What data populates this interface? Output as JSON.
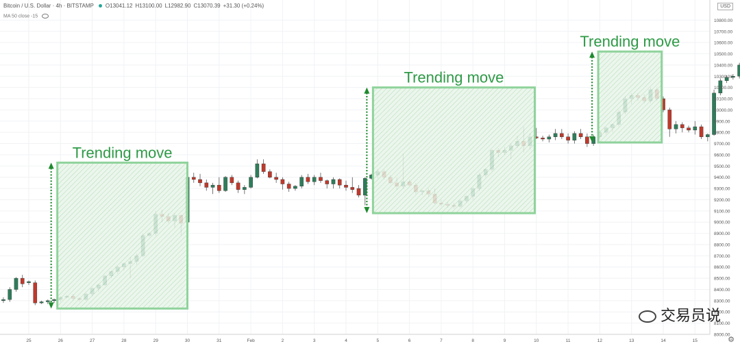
{
  "header": {
    "symbol": "Bitcoin / U.S. Dollar · 4h · BITSTAMP",
    "open": "O13041.12",
    "high": "H13100.00",
    "low": "L12982.90",
    "close": "C13070.39",
    "change": "+31.30 (+0.24%)",
    "ma_label": "MA 50 close -15",
    "currency": "USD"
  },
  "watermark": "交易员说",
  "colors": {
    "up": "#2e7d5b",
    "down": "#c0392b",
    "zone_stroke": "#8fd39b",
    "arrow": "#1e8a2e",
    "label": "#2e9a46"
  },
  "chart_data": {
    "type": "candlestick",
    "ylim": [
      8000,
      10900
    ],
    "y_ticks": [
      "8000.00",
      "8100.00",
      "8200.00",
      "8300.00",
      "8400.00",
      "8500.00",
      "8600.00",
      "8700.00",
      "8800.00",
      "8900.00",
      "9000.00",
      "9100.00",
      "9200.00",
      "9300.00",
      "9400.00",
      "9500.00",
      "9600.00",
      "9700.00",
      "9800.00",
      "9900.00",
      "10000.00",
      "10100.00",
      "10200.00",
      "10300.00",
      "10400.00",
      "10500.00",
      "10600.00",
      "10700.00",
      "10800.00"
    ],
    "x_ticks": [
      "25",
      "26",
      "27",
      "28",
      "29",
      "30",
      "31",
      "Feb",
      "2",
      "3",
      "4",
      "5",
      "6",
      "7",
      "8",
      "9",
      "10",
      "11",
      "12",
      "13",
      "14",
      "15"
    ],
    "candles_x": 0.2,
    "candles": [
      [
        8300,
        8330,
        8280,
        8310
      ],
      [
        8310,
        8420,
        8290,
        8400
      ],
      [
        8400,
        8510,
        8380,
        8500
      ],
      [
        8500,
        8530,
        8420,
        8450
      ],
      [
        8460,
        8480,
        8440,
        8470
      ],
      [
        8460,
        8480,
        8260,
        8280
      ],
      [
        8280,
        8300,
        8270,
        8290
      ],
      [
        8290,
        8310,
        8270,
        8300
      ],
      [
        8300,
        8320,
        8280,
        8310
      ],
      [
        8310,
        8340,
        8290,
        8330
      ],
      [
        8330,
        8350,
        8320,
        8340
      ],
      [
        8340,
        8360,
        8300,
        8320
      ],
      [
        8320,
        8330,
        8290,
        8310
      ],
      [
        8310,
        8370,
        8300,
        8360
      ],
      [
        8360,
        8420,
        8340,
        8410
      ],
      [
        8410,
        8450,
        8380,
        8440
      ],
      [
        8440,
        8530,
        8430,
        8520
      ],
      [
        8520,
        8570,
        8500,
        8560
      ],
      [
        8560,
        8610,
        8540,
        8600
      ],
      [
        8600,
        8640,
        8570,
        8630
      ],
      [
        8630,
        8690,
        8500,
        8650
      ],
      [
        8650,
        8720,
        8620,
        8700
      ],
      [
        8700,
        8900,
        8690,
        8880
      ],
      [
        8880,
        8910,
        8870,
        8900
      ],
      [
        8900,
        9100,
        8880,
        9070
      ],
      [
        9070,
        9110,
        9000,
        9050
      ],
      [
        9050,
        9080,
        8990,
        9010
      ],
      [
        9010,
        9080,
        8950,
        9060
      ],
      [
        9060,
        9070,
        8880,
        8990
      ],
      [
        9000,
        9420,
        8980,
        9400
      ],
      [
        9400,
        9440,
        9350,
        9380
      ],
      [
        9380,
        9430,
        9320,
        9350
      ],
      [
        9350,
        9380,
        9280,
        9310
      ],
      [
        9310,
        9350,
        9250,
        9330
      ],
      [
        9330,
        9400,
        9260,
        9280
      ],
      [
        9280,
        9410,
        9270,
        9400
      ],
      [
        9400,
        9420,
        9330,
        9350
      ],
      [
        9350,
        9370,
        9260,
        9290
      ],
      [
        9290,
        9330,
        9250,
        9310
      ],
      [
        9310,
        9420,
        9300,
        9400
      ],
      [
        9400,
        9560,
        9390,
        9520
      ],
      [
        9520,
        9560,
        9430,
        9450
      ],
      [
        9450,
        9470,
        9390,
        9400
      ],
      [
        9400,
        9440,
        9350,
        9380
      ],
      [
        9380,
        9400,
        9290,
        9340
      ],
      [
        9340,
        9360,
        9270,
        9300
      ],
      [
        9300,
        9330,
        9280,
        9320
      ],
      [
        9320,
        9420,
        9300,
        9400
      ],
      [
        9400,
        9430,
        9340,
        9360
      ],
      [
        9360,
        9420,
        9330,
        9400
      ],
      [
        9400,
        9440,
        9350,
        9370
      ],
      [
        9370,
        9380,
        9300,
        9340
      ],
      [
        9340,
        9400,
        9300,
        9380
      ],
      [
        9380,
        9390,
        9300,
        9330
      ],
      [
        9330,
        9370,
        9280,
        9310
      ],
      [
        9310,
        9400,
        9260,
        9290
      ],
      [
        9300,
        9330,
        9220,
        9240
      ],
      [
        9240,
        9400,
        9150,
        9390
      ],
      [
        9390,
        9430,
        9380,
        9420
      ],
      [
        9420,
        9470,
        9390,
        9450
      ],
      [
        9450,
        9470,
        9380,
        9400
      ],
      [
        9400,
        9420,
        9340,
        9350
      ],
      [
        9350,
        9400,
        9290,
        9320
      ],
      [
        9320,
        9610,
        9300,
        9360
      ],
      [
        9360,
        9380,
        9320,
        9330
      ],
      [
        9330,
        9350,
        9250,
        9270
      ],
      [
        9270,
        9290,
        9240,
        9280
      ],
      [
        9280,
        9300,
        9230,
        9250
      ],
      [
        9250,
        9300,
        9160,
        9170
      ],
      [
        9170,
        9200,
        9140,
        9160
      ],
      [
        9160,
        9180,
        9130,
        9150
      ],
      [
        9150,
        9170,
        9120,
        9140
      ],
      [
        9140,
        9200,
        9130,
        9190
      ],
      [
        9190,
        9240,
        9170,
        9230
      ],
      [
        9230,
        9310,
        9200,
        9300
      ],
      [
        9300,
        9440,
        9280,
        9420
      ],
      [
        9420,
        9480,
        9400,
        9470
      ],
      [
        9470,
        9650,
        9450,
        9640
      ],
      [
        9640,
        9660,
        9580,
        9620
      ],
      [
        9620,
        9670,
        9600,
        9640
      ],
      [
        9640,
        9700,
        9560,
        9680
      ],
      [
        9680,
        9770,
        9660,
        9720
      ],
      [
        9720,
        9850,
        9620,
        9680
      ],
      [
        9680,
        9790,
        9650,
        9760
      ],
      [
        9760,
        9840,
        9740,
        9750
      ],
      [
        9750,
        9770,
        9720,
        9740
      ],
      [
        9740,
        9780,
        9710,
        9760
      ],
      [
        9760,
        9830,
        9730,
        9790
      ],
      [
        9790,
        9830,
        9740,
        9760
      ],
      [
        9760,
        9790,
        9700,
        9730
      ],
      [
        9730,
        9810,
        9700,
        9790
      ],
      [
        9790,
        9830,
        9740,
        9760
      ],
      [
        9760,
        9790,
        9670,
        9700
      ],
      [
        9700,
        9780,
        9680,
        9760
      ],
      [
        9760,
        9820,
        9740,
        9800
      ],
      [
        9800,
        9850,
        9780,
        9840
      ],
      [
        9840,
        9880,
        9800,
        9870
      ],
      [
        9870,
        10000,
        9850,
        9980
      ],
      [
        9980,
        10120,
        9960,
        10100
      ],
      [
        10100,
        10150,
        10050,
        10130
      ],
      [
        10130,
        10150,
        10080,
        10110
      ],
      [
        10110,
        10140,
        10060,
        10080
      ],
      [
        10080,
        10200,
        10060,
        10180
      ],
      [
        10180,
        10200,
        10080,
        10100
      ],
      [
        10100,
        10120,
        9980,
        10000
      ],
      [
        10000,
        10020,
        9760,
        9830
      ],
      [
        9830,
        9900,
        9790,
        9870
      ],
      [
        9870,
        9890,
        9800,
        9840
      ],
      [
        9840,
        9860,
        9800,
        9820
      ],
      [
        9820,
        9900,
        9780,
        9850
      ],
      [
        9850,
        9870,
        9740,
        9760
      ],
      [
        9760,
        9790,
        9720,
        9780
      ],
      [
        9780,
        10180,
        9770,
        10150
      ],
      [
        10150,
        10280,
        10130,
        10260
      ],
      [
        10260,
        10310,
        10240,
        10290
      ],
      [
        10290,
        10320,
        10270,
        10300
      ],
      [
        10300,
        10420,
        10280,
        10400
      ],
      [
        10400,
        10420,
        10320,
        10350
      ],
      [
        10350,
        10380,
        10250,
        10300
      ],
      [
        10300,
        10360,
        10280,
        10340
      ],
      [
        10340,
        10360,
        10310,
        10330
      ],
      [
        10330,
        10440,
        10310,
        10420
      ],
      [
        10420,
        10450,
        10330,
        10360
      ],
      [
        10360,
        10400,
        10100,
        10170
      ],
      [
        10170,
        10300,
        10060,
        10250
      ],
      [
        10250,
        10270,
        10150,
        10230
      ],
      [
        10230,
        10300,
        10220,
        10250
      ],
      [
        10250,
        10270,
        10200,
        10240
      ],
      [
        10240,
        10260,
        10100,
        10110
      ],
      [
        10110,
        10290,
        10100,
        10260
      ],
      [
        10260,
        10280,
        10180,
        10240
      ],
      [
        10240,
        10380,
        10230,
        10370
      ],
      [
        10370,
        10410,
        10330,
        10360
      ],
      [
        10360,
        10400,
        10240,
        10260
      ],
      [
        10260,
        10300,
        10200,
        10240
      ],
      [
        10240,
        10250,
        9740,
        10010
      ]
    ],
    "annotations": [
      {
        "text": "Trending move",
        "x_start": 0.9,
        "x_end": 5.0,
        "y_low": 8230,
        "y_high": 9530
      },
      {
        "text": "Trending move",
        "x_start": 10.85,
        "x_end": 15.95,
        "y_low": 9080,
        "y_high": 10200
      },
      {
        "text": "Trending move",
        "x_start": 17.95,
        "x_end": 19.95,
        "y_low": 9710,
        "y_high": 10520
      }
    ]
  }
}
